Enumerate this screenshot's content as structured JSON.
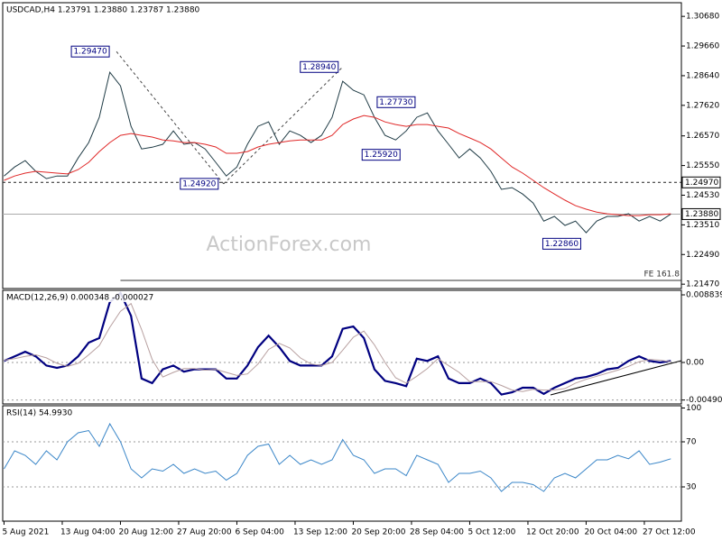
{
  "chart_data": [
    {
      "type": "line",
      "title": "USDCAD,H4  1.23791 1.23880 1.23787 1.23880",
      "watermark": "ActionForex.com",
      "x": [
        0,
        8,
        16,
        24,
        32,
        40,
        48,
        56,
        64,
        72,
        80,
        88,
        96,
        104,
        112,
        120,
        128,
        136,
        144,
        152,
        160,
        168,
        176,
        184,
        192,
        200,
        208,
        216,
        224,
        232,
        240,
        248,
        256,
        264,
        272,
        280,
        288,
        296,
        304,
        312,
        320,
        328,
        336,
        344,
        352,
        360,
        368,
        376,
        384,
        392,
        400,
        408,
        416,
        424,
        432,
        440,
        448,
        456,
        464,
        472,
        480,
        488,
        496,
        504
      ],
      "xlim": [
        -1,
        512
      ],
      "ylim": [
        1.2132,
        1.3115
      ],
      "yticks": [
        {
          "value": 1.3068,
          "label": "1.30680"
        },
        {
          "value": 1.2966,
          "label": "1.29660"
        },
        {
          "value": 1.2864,
          "label": "1.28640"
        },
        {
          "value": 1.2762,
          "label": "1.27620"
        },
        {
          "value": 1.2657,
          "label": "1.26570"
        },
        {
          "value": 1.2555,
          "label": "1.25550"
        },
        {
          "value": 1.2453,
          "label": "1.24530"
        },
        {
          "value": 1.2351,
          "label": "1.23510"
        },
        {
          "value": 1.2249,
          "label": "1.22490"
        },
        {
          "value": 1.2147,
          "label": "1.21470"
        }
      ],
      "series": [
        {
          "color": "#1f3b45",
          "values": [
            1.2519,
            1.255,
            1.2572,
            1.2535,
            1.251,
            1.2519,
            1.2519,
            1.2581,
            1.2634,
            1.2721,
            1.2876,
            1.2829,
            1.269,
            1.2612,
            1.2618,
            1.2628,
            1.2674,
            1.2628,
            1.2634,
            1.2612,
            1.2566,
            1.2519,
            1.255,
            1.2628,
            1.269,
            1.2705,
            1.2628,
            1.2674,
            1.2659,
            1.2634,
            1.2659,
            1.2721,
            1.2845,
            1.2814,
            1.2798,
            1.2721,
            1.2659,
            1.2643,
            1.2674,
            1.2721,
            1.2736,
            1.2674,
            1.2628,
            1.2581,
            1.2612,
            1.2581,
            1.2535,
            1.2473,
            1.2479,
            1.2457,
            1.2426,
            1.2364,
            1.238,
            1.2349,
            1.2364,
            1.2324,
            1.2364,
            1.238,
            1.238,
            1.2389,
            1.2364,
            1.238,
            1.2364,
            1.2388
          ]
        },
        {
          "color": "#e02828",
          "values": [
            1.2504,
            1.2519,
            1.2529,
            1.2535,
            1.2532,
            1.2529,
            1.2526,
            1.2541,
            1.2566,
            1.2603,
            1.2634,
            1.2659,
            1.2665,
            1.2659,
            1.2653,
            1.2643,
            1.264,
            1.2634,
            1.2634,
            1.2628,
            1.2619,
            1.2597,
            1.2597,
            1.2603,
            1.2619,
            1.2628,
            1.2634,
            1.264,
            1.2643,
            1.2643,
            1.2643,
            1.2659,
            1.2696,
            1.2715,
            1.2727,
            1.2721,
            1.2705,
            1.2696,
            1.269,
            1.2696,
            1.2696,
            1.269,
            1.2684,
            1.2665,
            1.265,
            1.2634,
            1.2612,
            1.2581,
            1.255,
            1.2529,
            1.2504,
            1.2479,
            1.2457,
            1.2436,
            1.2417,
            1.2405,
            1.2395,
            1.2389,
            1.2386,
            1.2383,
            1.2383,
            1.2386,
            1.2386,
            1.2389
          ]
        }
      ],
      "annotations": [
        {
          "x": 85,
          "value": 1.2947,
          "label": "1.29470"
        },
        {
          "x": 256,
          "value": 1.2894,
          "label": "1.28940"
        },
        {
          "x": 280,
          "value": 1.2773,
          "label": "1.27730"
        },
        {
          "x": 300,
          "value": 1.2592,
          "label": "1.25920"
        },
        {
          "x": 166,
          "value": 1.2492,
          "label": "1.24920"
        },
        {
          "x": 440,
          "value": 1.2286,
          "label": "1.22860"
        }
      ],
      "levels": [
        {
          "value": 1.2497,
          "label": "1.24970",
          "style": "dashed"
        },
        {
          "value": 1.2388,
          "label": "1.23880",
          "style": "solid"
        },
        {
          "value": 1.216,
          "label": "FE 161.8",
          "style": "fe"
        }
      ]
    },
    {
      "type": "line",
      "title": "MACD(12,26,9) 0.000348 -0.000027",
      "x": [
        0,
        8,
        16,
        24,
        32,
        40,
        48,
        56,
        64,
        72,
        80,
        88,
        96,
        104,
        112,
        120,
        128,
        136,
        144,
        152,
        160,
        168,
        176,
        184,
        192,
        200,
        208,
        216,
        224,
        232,
        240,
        248,
        256,
        264,
        272,
        280,
        288,
        296,
        304,
        312,
        320,
        328,
        336,
        344,
        352,
        360,
        368,
        376,
        384,
        392,
        400,
        408,
        416,
        424,
        432,
        440,
        448,
        456,
        464,
        472,
        480,
        488,
        496,
        504
      ],
      "xlim": [
        -1,
        512
      ],
      "ylim": [
        -0.00542,
        0.00943
      ],
      "yticks": [
        0.008839,
        {
          "value": 0,
          "label": "0.00"
        },
        -0.004907
      ],
      "series": [
        {
          "color": "#000080",
          "values": [
            0.0002,
            0.0008,
            0.0014,
            0.0008,
            -0.0004,
            -0.0007,
            -0.0004,
            0.0008,
            0.0026,
            0.0032,
            0.0079,
            0.0091,
            0.0061,
            -0.0021,
            -0.0027,
            -0.0009,
            -0.0004,
            -0.0012,
            -0.0009,
            -0.0009,
            -0.0009,
            -0.0021,
            -0.0021,
            -0.0004,
            0.002,
            0.0035,
            0.002,
            0.0002,
            -0.0004,
            -0.0004,
            -0.0004,
            0.0008,
            0.0044,
            0.0047,
            0.0032,
            -0.0009,
            -0.0024,
            -0.0027,
            -0.0031,
            0.0005,
            0.0002,
            0.0008,
            -0.0021,
            -0.0027,
            -0.0027,
            -0.0021,
            -0.0027,
            -0.0042,
            -0.0039,
            -0.0033,
            -0.0033,
            -0.0041,
            -0.0033,
            -0.0027,
            -0.0021,
            -0.0019,
            -0.0015,
            -0.0009,
            -0.0007,
            0.0002,
            0.0008,
            0.0002,
            0.0,
            0.0002
          ]
        },
        {
          "color": "#b8a0a0",
          "values": [
            0.0003,
            0.0005,
            0.0008,
            0.001,
            0.0006,
            -0.0001,
            -0.0005,
            -0.0001,
            0.001,
            0.0022,
            0.0046,
            0.0067,
            0.0077,
            0.0043,
            0.0004,
            -0.0019,
            -0.0013,
            -0.0008,
            -0.0008,
            -0.001,
            -0.0009,
            -0.0013,
            -0.0017,
            -0.0015,
            -0.0002,
            0.0017,
            0.0025,
            0.0019,
            0.0006,
            -0.0002,
            -0.0004,
            0,
            0.0016,
            0.0033,
            0.0041,
            0.0023,
            0,
            -0.002,
            -0.0027,
            -0.0018,
            -0.0008,
            0.0005,
            -0.0004,
            -0.0013,
            -0.0025,
            -0.0025,
            -0.0025,
            -0.003,
            -0.0036,
            -0.0038,
            -0.0035,
            -0.0036,
            -0.0036,
            -0.0034,
            -0.0027,
            -0.0022,
            -0.0018,
            -0.0014,
            -0.001,
            -0.0005,
            0.0001,
            0.0004,
            0.0003,
            0.0001
          ]
        }
      ]
    },
    {
      "type": "line",
      "title": "RSI(14) 54.9930",
      "x": [
        0,
        8,
        16,
        24,
        32,
        40,
        48,
        56,
        64,
        72,
        80,
        88,
        96,
        104,
        112,
        120,
        128,
        136,
        144,
        152,
        160,
        168,
        176,
        184,
        192,
        200,
        208,
        216,
        224,
        232,
        240,
        248,
        256,
        264,
        272,
        280,
        288,
        296,
        304,
        312,
        320,
        328,
        336,
        344,
        352,
        360,
        368,
        376,
        384,
        392,
        400,
        408,
        416,
        424,
        432,
        440,
        448,
        456,
        464,
        472,
        480,
        488,
        496,
        504
      ],
      "xlim": [
        -1,
        512
      ],
      "ylim": [
        -0.4,
        102
      ],
      "yticks": [
        100,
        70,
        30
      ],
      "xticks": [
        {
          "value": 0,
          "label": "5 Aug 2021"
        },
        {
          "value": 44,
          "label": "13 Aug 04:00"
        },
        {
          "value": 88,
          "label": "20 Aug 12:00"
        },
        {
          "value": 132,
          "label": "27 Aug 20:00"
        },
        {
          "value": 176,
          "label": "6 Sep 04:00"
        },
        {
          "value": 220,
          "label": "13 Sep 12:00"
        },
        {
          "value": 264,
          "label": "20 Sep 20:00"
        },
        {
          "value": 308,
          "label": "28 Sep 04:00"
        },
        {
          "value": 352,
          "label": "5 Oct 12:00"
        },
        {
          "value": 396,
          "label": "12 Oct 20:00"
        },
        {
          "value": 440,
          "label": "20 Oct 04:00"
        },
        {
          "value": 484,
          "label": "27 Oct 12:00"
        }
      ],
      "series": [
        {
          "color": "#3a86c8",
          "values": [
            46,
            62,
            58,
            50,
            62,
            54,
            70,
            78,
            80,
            66,
            86,
            70,
            46,
            38,
            46,
            44,
            50,
            42,
            46,
            42,
            44,
            36,
            42,
            58,
            66,
            68,
            50,
            58,
            50,
            54,
            50,
            54,
            72,
            58,
            54,
            42,
            46,
            46,
            40,
            58,
            54,
            50,
            34,
            42,
            42,
            44,
            38,
            26,
            34,
            34,
            32,
            26,
            38,
            42,
            38,
            46,
            54,
            54,
            58,
            55,
            62,
            50,
            52,
            55
          ]
        }
      ]
    }
  ]
}
